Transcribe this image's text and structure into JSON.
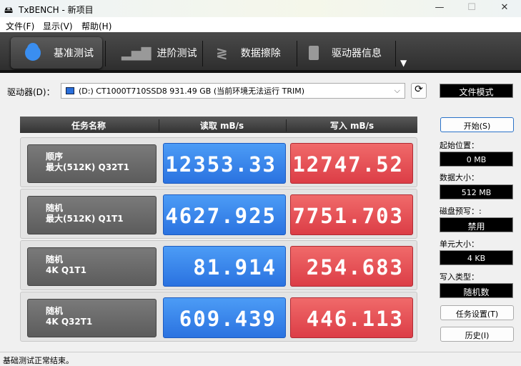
{
  "window": {
    "title": "TxBENCH - 新项目",
    "min": "—",
    "max": "☐",
    "close": "✕"
  },
  "menu": [
    "文件(F)",
    "显示(V)",
    "帮助(H)"
  ],
  "tabs": [
    {
      "label": "基准测试",
      "icon": "stopwatch-icon"
    },
    {
      "label": "进阶测试",
      "icon": "bar-chart-icon"
    },
    {
      "label": "数据擦除",
      "icon": "eraser-icon"
    },
    {
      "label": "驱动器信息",
      "icon": "drive-info-icon"
    }
  ],
  "more": "▼",
  "drive": {
    "label": "驱动器(D)：",
    "value": "(D:) CT1000T710SSD8  931.49 GB (当前环境无法运行 TRIM)",
    "chevron": "⌵"
  },
  "table": {
    "headers": [
      "任务名称",
      "读取 mB/s",
      "写入 mB/s"
    ],
    "rows": [
      {
        "name1": "顺序",
        "name2": "最大(512K) Q32T1",
        "read": "12353.33",
        "write": "12747.52"
      },
      {
        "name1": "随机",
        "name2": "最大(512K) Q1T1",
        "read": "4627.925",
        "write": "7751.703"
      },
      {
        "name1": "随机",
        "name2": "4K Q1T1",
        "read": "81.914",
        "write": "254.683"
      },
      {
        "name1": "随机",
        "name2": "4K Q32T1",
        "read": "609.439",
        "write": "446.113"
      }
    ]
  },
  "side": {
    "mode": "文件模式",
    "start": "开始(S)",
    "fields": [
      {
        "label": "起始位置：",
        "value": "0 MB"
      },
      {
        "label": "数据大小：",
        "value": "512 MB"
      },
      {
        "label": "磁盘预写：:",
        "value": "禁用"
      },
      {
        "label": "单元大小：",
        "value": "4 KB"
      },
      {
        "label": "写入类型：",
        "value": "随机数"
      }
    ],
    "task_settings": "任务设置(T)",
    "history": "历史(I)"
  },
  "status": "基础测试正常结束。"
}
